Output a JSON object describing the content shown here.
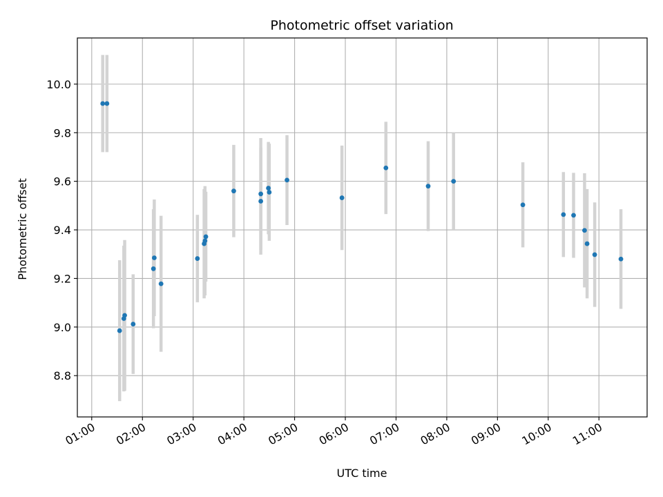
{
  "chart_data": {
    "type": "scatter",
    "title": "Photometric offset variation",
    "xlabel": "UTC time",
    "ylabel": "Photometric offset",
    "x_format": "HH:MM",
    "xlim": [
      "00:43",
      "11:57"
    ],
    "ylim": [
      8.63,
      10.19
    ],
    "grid": true,
    "x_ticks": [
      "01:00",
      "02:00",
      "03:00",
      "04:00",
      "05:00",
      "06:00",
      "07:00",
      "08:00",
      "09:00",
      "10:00",
      "11:00"
    ],
    "y_ticks": [
      8.8,
      9.0,
      9.2,
      9.4,
      9.6,
      9.8,
      10.0
    ],
    "colors": {
      "point": "#1f77b4",
      "errorbar": "#d3d3d3",
      "grid": "#b0b0b0"
    },
    "series": [
      {
        "points": [
          {
            "x": "01:13",
            "y": 9.92,
            "err": 0.2
          },
          {
            "x": "01:18",
            "y": 9.92,
            "err": 0.2
          },
          {
            "x": "01:33",
            "y": 8.985,
            "err": 0.29
          },
          {
            "x": "01:38",
            "y": 9.035,
            "err": 0.3
          },
          {
            "x": "01:39",
            "y": 9.048,
            "err": 0.31
          },
          {
            "x": "01:49",
            "y": 9.012,
            "err": 0.205
          },
          {
            "x": "02:13",
            "y": 9.24,
            "err": 0.245
          },
          {
            "x": "02:14",
            "y": 9.285,
            "err": 0.24
          },
          {
            "x": "02:22",
            "y": 9.178,
            "err": 0.28
          },
          {
            "x": "03:05",
            "y": 9.282,
            "err": 0.18
          },
          {
            "x": "03:13",
            "y": 9.343,
            "err": 0.225
          },
          {
            "x": "03:14",
            "y": 9.355,
            "err": 0.225
          },
          {
            "x": "03:15",
            "y": 9.372,
            "err": 0.185
          },
          {
            "x": "03:48",
            "y": 9.56,
            "err": 0.19
          },
          {
            "x": "04:20",
            "y": 9.518,
            "err": 0.22
          },
          {
            "x": "04:20",
            "y": 9.548,
            "err": 0.23
          },
          {
            "x": "04:29",
            "y": 9.572,
            "err": 0.19
          },
          {
            "x": "04:30",
            "y": 9.555,
            "err": 0.2
          },
          {
            "x": "04:51",
            "y": 9.605,
            "err": 0.185
          },
          {
            "x": "05:56",
            "y": 9.532,
            "err": 0.215
          },
          {
            "x": "06:48",
            "y": 9.655,
            "err": 0.19
          },
          {
            "x": "07:38",
            "y": 9.58,
            "err": 0.185
          },
          {
            "x": "08:08",
            "y": 9.6,
            "err": 0.2
          },
          {
            "x": "09:30",
            "y": 9.503,
            "err": 0.175
          },
          {
            "x": "10:18",
            "y": 9.463,
            "err": 0.175
          },
          {
            "x": "10:30",
            "y": 9.46,
            "err": 0.175
          },
          {
            "x": "10:43",
            "y": 9.398,
            "err": 0.235
          },
          {
            "x": "10:46",
            "y": 9.343,
            "err": 0.225
          },
          {
            "x": "10:55",
            "y": 9.298,
            "err": 0.215
          },
          {
            "x": "11:26",
            "y": 9.28,
            "err": 0.205
          }
        ]
      }
    ]
  }
}
